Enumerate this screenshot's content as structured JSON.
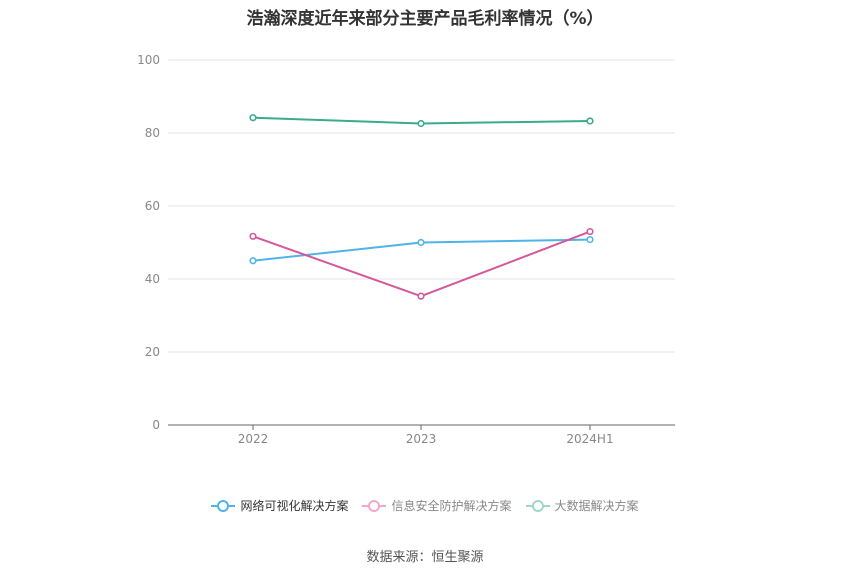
{
  "chart_data": {
    "type": "line",
    "title": "浩瀚深度近年来部分主要产品毛利率情况（%）",
    "categories": [
      "2022",
      "2023",
      "2024H1"
    ],
    "yticks": [
      "0",
      "20",
      "40",
      "60",
      "80",
      "100"
    ],
    "ylim": [
      0,
      100
    ],
    "grid": true,
    "legend_position": "bottom",
    "series": [
      {
        "name": "网络可视化解决方案",
        "values": [
          45.0,
          50.0,
          50.8
        ],
        "color": "#4fb3e8",
        "legend_color": "#4fb3e8"
      },
      {
        "name": "信息安全防护解决方案",
        "values": [
          51.7,
          35.3,
          53.0
        ],
        "color": "#d4589c",
        "legend_color": "#f0a9cc"
      },
      {
        "name": "大数据解决方案",
        "values": [
          84.2,
          82.6,
          83.3
        ],
        "color": "#3aab8c",
        "legend_color": "#9fd6c4"
      }
    ]
  },
  "source": "数据来源：恒生聚源"
}
